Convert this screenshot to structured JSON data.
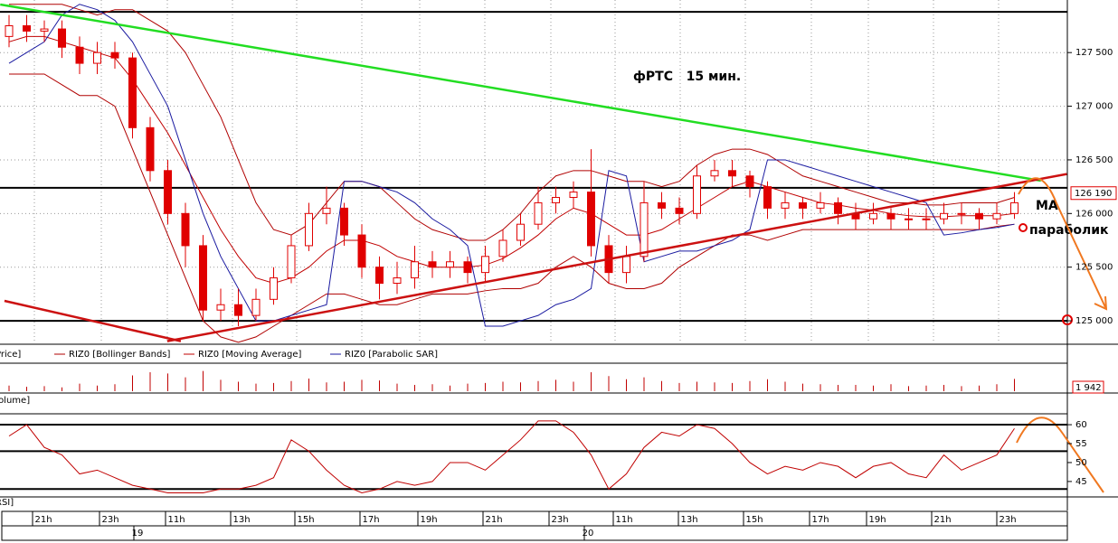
{
  "chart_data": {
    "type": "candlestick",
    "title": "фРТС   15 мин.",
    "annotations": [
      "МА",
      "параболик"
    ],
    "price": {
      "name": "Price]",
      "color": "#e00000",
      "open": [
        127650,
        127750,
        127700,
        127720,
        127550,
        127400,
        127500,
        127450,
        126800,
        126400,
        126000,
        125700,
        125100,
        125150,
        125050,
        125200,
        125400,
        125700,
        126000,
        126050,
        125800,
        125500,
        125350,
        125400,
        125550,
        125500,
        125550,
        125450,
        125600,
        125750,
        125900,
        126100,
        126150,
        126200,
        125700,
        125450,
        125600,
        126100,
        126050,
        126000,
        126350,
        126400,
        126350,
        126250,
        126050,
        126100,
        126050,
        126100,
        126000,
        125950,
        126000,
        125950,
        125950,
        125950,
        126000,
        126000,
        125950,
        126000
      ],
      "high": [
        127850,
        127850,
        127800,
        127800,
        127650,
        127600,
        127600,
        127500,
        126900,
        126500,
        126100,
        125800,
        125300,
        125300,
        125300,
        125500,
        125800,
        126100,
        126250,
        126100,
        125900,
        125600,
        125550,
        125700,
        125650,
        125650,
        125600,
        125700,
        125850,
        126000,
        126250,
        126250,
        126300,
        126600,
        125800,
        125700,
        126300,
        126200,
        126150,
        126450,
        126500,
        126500,
        126400,
        126300,
        126200,
        126150,
        126200,
        126150,
        126100,
        126100,
        126050,
        126050,
        126050,
        126100,
        126100,
        126050,
        126100,
        126200
      ],
      "low": [
        127550,
        127600,
        127600,
        127450,
        127300,
        127300,
        127350,
        126700,
        126300,
        125900,
        125500,
        125000,
        125000,
        124950,
        125000,
        125150,
        125350,
        125650,
        125900,
        125700,
        125400,
        125200,
        125250,
        125300,
        125400,
        125400,
        125350,
        125350,
        125550,
        125700,
        125850,
        126000,
        126050,
        125600,
        125350,
        125350,
        125550,
        125950,
        125900,
        125950,
        126300,
        126250,
        126150,
        125950,
        125950,
        125950,
        126000,
        125900,
        125850,
        125900,
        125850,
        125850,
        125850,
        125900,
        125900,
        125850,
        125900,
        125950
      ],
      "close": [
        127750,
        127700,
        127720,
        127550,
        127400,
        127500,
        127450,
        126800,
        126400,
        126000,
        125700,
        125100,
        125150,
        125050,
        125200,
        125400,
        125700,
        126000,
        126050,
        125800,
        125500,
        125350,
        125400,
        125550,
        125500,
        125550,
        125450,
        125600,
        125750,
        125900,
        126100,
        126150,
        126200,
        125700,
        125450,
        125600,
        126100,
        126050,
        126000,
        126350,
        126400,
        126350,
        126250,
        126050,
        126100,
        126050,
        126100,
        126000,
        125950,
        126000,
        125950,
        125950,
        125950,
        126000,
        126000,
        125950,
        126000,
        126100
      ]
    },
    "bollinger": {
      "name": "RIZ0 [Bollinger Bands]",
      "color": "#b00000",
      "upper": [
        127950,
        127950,
        127950,
        127950,
        127900,
        127850,
        127900,
        127900,
        127800,
        127700,
        127500,
        127200,
        126900,
        126500,
        126100,
        125850,
        125800,
        125900,
        126100,
        126300,
        126300,
        126250,
        126100,
        125950,
        125850,
        125800,
        125750,
        125750,
        125850,
        126000,
        126200,
        126350,
        126400,
        126400,
        126350,
        126300,
        126300,
        126250,
        126300,
        126450,
        126550,
        126600,
        126600,
        126550,
        126450,
        126350,
        126300,
        126250,
        126200,
        126150,
        126100,
        126100,
        126080,
        126080,
        126100,
        126100,
        126100,
        126150
      ],
      "lower": [
        127300,
        127300,
        127300,
        127200,
        127100,
        127100,
        127000,
        126600,
        126200,
        125800,
        125400,
        125000,
        124850,
        124800,
        124850,
        124950,
        125050,
        125150,
        125250,
        125250,
        125200,
        125150,
        125150,
        125200,
        125250,
        125250,
        125250,
        125280,
        125300,
        125300,
        125350,
        125500,
        125600,
        125500,
        125350,
        125300,
        125300,
        125350,
        125500,
        125600,
        125700,
        125800,
        125800,
        125750,
        125800,
        125850,
        125850,
        125850,
        125850,
        125850,
        125850,
        125850,
        125850,
        125850,
        125850,
        125850,
        125880,
        125900
      ]
    },
    "ma": {
      "name": "RIZ0 [Moving Average]",
      "color": "#c00000",
      "values": [
        127600,
        127650,
        127650,
        127600,
        127550,
        127500,
        127450,
        127250,
        127000,
        126750,
        126450,
        126150,
        125850,
        125600,
        125400,
        125350,
        125400,
        125500,
        125650,
        125750,
        125750,
        125700,
        125600,
        125550,
        125500,
        125500,
        125500,
        125520,
        125580,
        125680,
        125800,
        125950,
        126050,
        126000,
        125900,
        125800,
        125800,
        125850,
        125950,
        126050,
        126150,
        126250,
        126300,
        126250,
        126200,
        126150,
        126100,
        126080,
        126050,
        126030,
        126000,
        125980,
        125970,
        125970,
        125980,
        125980,
        125980,
        126000
      ]
    },
    "sar": {
      "name": "RIZ0 [Parabolic SAR]",
      "color": "#1a1aa0",
      "values": [
        127400,
        127500,
        127600,
        127850,
        127950,
        127900,
        127800,
        127600,
        127300,
        127000,
        126500,
        126000,
        125600,
        125300,
        125000,
        125000,
        125050,
        125100,
        125150,
        126300,
        126300,
        126250,
        126200,
        126100,
        125950,
        125850,
        125700,
        124950,
        124950,
        125000,
        125050,
        125150,
        125200,
        125300,
        126400,
        126350,
        125550,
        125600,
        125650,
        125650,
        125700,
        125750,
        125850,
        126500,
        126500,
        126450,
        126400,
        126350,
        126300,
        126250,
        126200,
        126150,
        126100,
        125800,
        125820,
        125850,
        125870,
        125900
      ]
    },
    "ylim": [
      124790,
      127990
    ],
    "yticks": [
      {
        "value": 125000,
        "label": "125 000"
      },
      {
        "value": 125500,
        "label": "125 500"
      },
      {
        "value": 126000,
        "label": "126 000"
      },
      {
        "value": 126500,
        "label": "126 500"
      },
      {
        "value": 127000,
        "label": "127 000"
      },
      {
        "value": 127500,
        "label": "127 500"
      }
    ],
    "last_price": {
      "value": 126190,
      "label": "126 190"
    },
    "hlines": [
      127880,
      126240,
      125000
    ],
    "trendlines": [
      {
        "color": "#22dd22",
        "x": [
          -0.5,
          58.5
        ],
        "y": [
          127948,
          126306
        ]
      },
      {
        "color": "#cc1111",
        "x": [
          -0.26,
          9.74
        ],
        "y": [
          125186,
          124810
        ]
      },
      {
        "color": "#cc1111",
        "x": [
          8.97,
          59.97
        ],
        "y": [
          124810,
          126368
        ]
      }
    ],
    "volume": {
      "name": "Volume]",
      "color": "#c00000",
      "ylim": [
        0,
        4000
      ],
      "values": [
        900,
        700,
        800,
        600,
        1200,
        900,
        1100,
        2500,
        3000,
        2800,
        2200,
        3200,
        1800,
        1500,
        1200,
        1300,
        1600,
        2000,
        1400,
        1500,
        1800,
        1700,
        1200,
        1000,
        1100,
        900,
        1200,
        1300,
        1500,
        1400,
        1600,
        1800,
        1500,
        3000,
        2400,
        1900,
        2200,
        1600,
        1300,
        1500,
        1400,
        1300,
        1600,
        1900,
        1500,
        1200,
        1100,
        1000,
        1000,
        900,
        1100,
        800,
        900,
        1000,
        800,
        900,
        1100,
        1942
      ],
      "last": {
        "value": 1942,
        "label": "1 942"
      }
    },
    "rsi": {
      "name": "RSI]",
      "color": "#c00000",
      "ylim": [
        41.4,
        62.4
      ],
      "yticks": [
        45,
        50,
        55,
        60
      ],
      "levels": [
        60,
        53,
        43
      ],
      "values": [
        57,
        60,
        54,
        52,
        47,
        48,
        46,
        44,
        43,
        42,
        42,
        42,
        43,
        43,
        44,
        46,
        56,
        53,
        48,
        44,
        42,
        43,
        45,
        44,
        45,
        50,
        50,
        48,
        52,
        56,
        61,
        61,
        58,
        52,
        43,
        47,
        54,
        58,
        57,
        60,
        59,
        55,
        50,
        47,
        49,
        48,
        50,
        49,
        46,
        49,
        50,
        47,
        46,
        52,
        48,
        50,
        52,
        59
      ]
    },
    "time_labels": [
      "21h",
      "23h",
      "11h",
      "13h",
      "15h",
      "17h",
      "19h",
      "21h",
      "23h",
      "11h",
      "13h",
      "15h",
      "17h",
      "19h",
      "21h",
      "23h"
    ],
    "date_labels": [
      "19",
      "20"
    ]
  }
}
